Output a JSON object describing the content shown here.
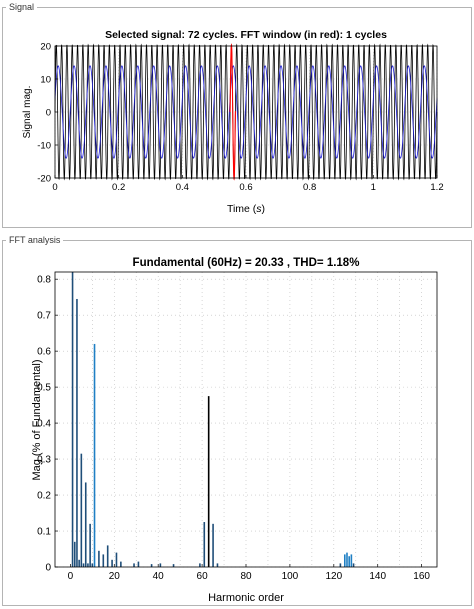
{
  "panels": {
    "signal_label": "Signal",
    "fft_label": "FFT analysis"
  },
  "chart_data": [
    {
      "type": "line",
      "title": "Selected signal: 72 cycles. FFT window (in red): 1 cycles",
      "xlabel": "Time (s)",
      "ylabel": "Signal mag.",
      "xlim": [
        0,
        1.2
      ],
      "ylim": [
        -20,
        20
      ],
      "x_ticks": [
        "0",
        "0.2",
        "0.4",
        "0.6",
        "0.8",
        "1",
        "1.2"
      ],
      "y_ticks": [
        "20",
        "10",
        "0",
        "-10",
        "-20"
      ],
      "grid": true,
      "series": [
        {
          "color": "#000000",
          "frequency_hz": 60,
          "amplitude": 20.3
        },
        {
          "color": "#1f1fd6",
          "frequency_hz": 20,
          "amplitude": 14
        },
        {
          "color": "#ff0000",
          "x_range": [
            0.55,
            0.5667
          ]
        }
      ]
    },
    {
      "type": "bar",
      "title": "Fundamental (60Hz) = 20.33 , THD= 1.18%",
      "xlabel": "Harmonic order",
      "ylabel": "Mag (% of Fundamental)",
      "xlim": [
        -7,
        167
      ],
      "ylim": [
        0,
        0.82
      ],
      "x_ticks": [
        "0",
        "20",
        "40",
        "60",
        "80",
        "100",
        "120",
        "140",
        "160"
      ],
      "y_ticks": [
        "0",
        "0.1",
        "0.2",
        "0.3",
        "0.4",
        "0.5",
        "0.6",
        "0.7",
        "0.8"
      ],
      "grid": true,
      "bars": [
        {
          "x": 1,
          "y": 0.82,
          "color": "#1f4e79"
        },
        {
          "x": 2,
          "y": 0.07,
          "color": "#1f4e79"
        },
        {
          "x": 3,
          "y": 0.745,
          "color": "#1f4e79"
        },
        {
          "x": 4,
          "y": 0.02,
          "color": "#1f4e79"
        },
        {
          "x": 5,
          "y": 0.315,
          "color": "#1f4e79"
        },
        {
          "x": 6,
          "y": 0.01,
          "color": "#1f4e79"
        },
        {
          "x": 7,
          "y": 0.235,
          "color": "#1f4e79"
        },
        {
          "x": 8,
          "y": 0.01,
          "color": "#1f4e79"
        },
        {
          "x": 9,
          "y": 0.12,
          "color": "#1f4e79"
        },
        {
          "x": 10,
          "y": 0.01,
          "color": "#1f4e79"
        },
        {
          "x": 11,
          "y": 0.62,
          "color": "#1f7fc4"
        },
        {
          "x": 13,
          "y": 0.045,
          "color": "#1f4e79"
        },
        {
          "x": 15,
          "y": 0.035,
          "color": "#1f4e79"
        },
        {
          "x": 17,
          "y": 0.06,
          "color": "#1f4e79"
        },
        {
          "x": 19,
          "y": 0.02,
          "color": "#1f4e79"
        },
        {
          "x": 21,
          "y": 0.04,
          "color": "#1f4e79"
        },
        {
          "x": 23,
          "y": 0.015,
          "color": "#1f4e79"
        },
        {
          "x": 29,
          "y": 0.01,
          "color": "#1f4e79"
        },
        {
          "x": 31,
          "y": 0.015,
          "color": "#1f4e79"
        },
        {
          "x": 37,
          "y": 0.008,
          "color": "#1f4e79"
        },
        {
          "x": 41,
          "y": 0.01,
          "color": "#1f4e79"
        },
        {
          "x": 47,
          "y": 0.008,
          "color": "#1f4e79"
        },
        {
          "x": 59,
          "y": 0.01,
          "color": "#1f4e79"
        },
        {
          "x": 61,
          "y": 0.125,
          "color": "#1f4e79"
        },
        {
          "x": 63,
          "y": 0.475,
          "color": "#000000"
        },
        {
          "x": 65,
          "y": 0.12,
          "color": "#1f4e79"
        },
        {
          "x": 67,
          "y": 0.01,
          "color": "#1f4e79"
        },
        {
          "x": 123,
          "y": 0.01,
          "color": "#1f4e79"
        },
        {
          "x": 125,
          "y": 0.035,
          "color": "#1f7fc4"
        },
        {
          "x": 126,
          "y": 0.04,
          "color": "#1f7fc4"
        },
        {
          "x": 127,
          "y": 0.03,
          "color": "#1f7fc4"
        },
        {
          "x": 128,
          "y": 0.035,
          "color": "#1f7fc4"
        },
        {
          "x": 129,
          "y": 0.01,
          "color": "#1f4e79"
        }
      ]
    }
  ]
}
